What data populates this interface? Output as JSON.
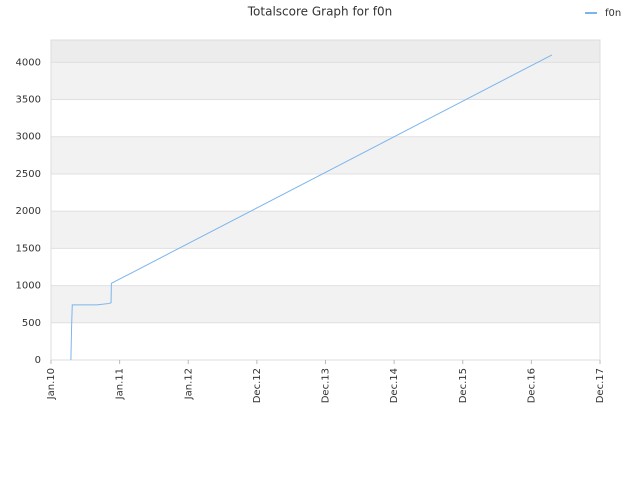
{
  "chart_data": {
    "type": "line",
    "title": "Totalscore Graph for f0n",
    "x": [
      0.29,
      0.3,
      0.31,
      0.67,
      0.85,
      0.87,
      0.875,
      0.88,
      7.3
    ],
    "series": [
      {
        "name": "f0n",
        "color": "#7cb5ec",
        "values": [
          0,
          450,
          740,
          740,
          760,
          770,
          770,
          1030,
          4100
        ]
      }
    ],
    "xlim": [
      0,
      8
    ],
    "xticks": [
      {
        "value": 0,
        "label": "Jan.10"
      },
      {
        "value": 1,
        "label": "Jan.11"
      },
      {
        "value": 2,
        "label": "Jan.12"
      },
      {
        "value": 3,
        "label": "Dec.12"
      },
      {
        "value": 4,
        "label": "Dec.13"
      },
      {
        "value": 5,
        "label": "Dec.14"
      },
      {
        "value": 6,
        "label": "Dec.15"
      },
      {
        "value": 7,
        "label": "Dec.16"
      },
      {
        "value": 8,
        "label": "Dec.17"
      }
    ],
    "ylim": [
      0,
      4300
    ],
    "yticks": [
      0,
      500,
      1000,
      1500,
      2000,
      2500,
      3000,
      3500,
      4000
    ],
    "grid": true,
    "legend": "top-right"
  }
}
